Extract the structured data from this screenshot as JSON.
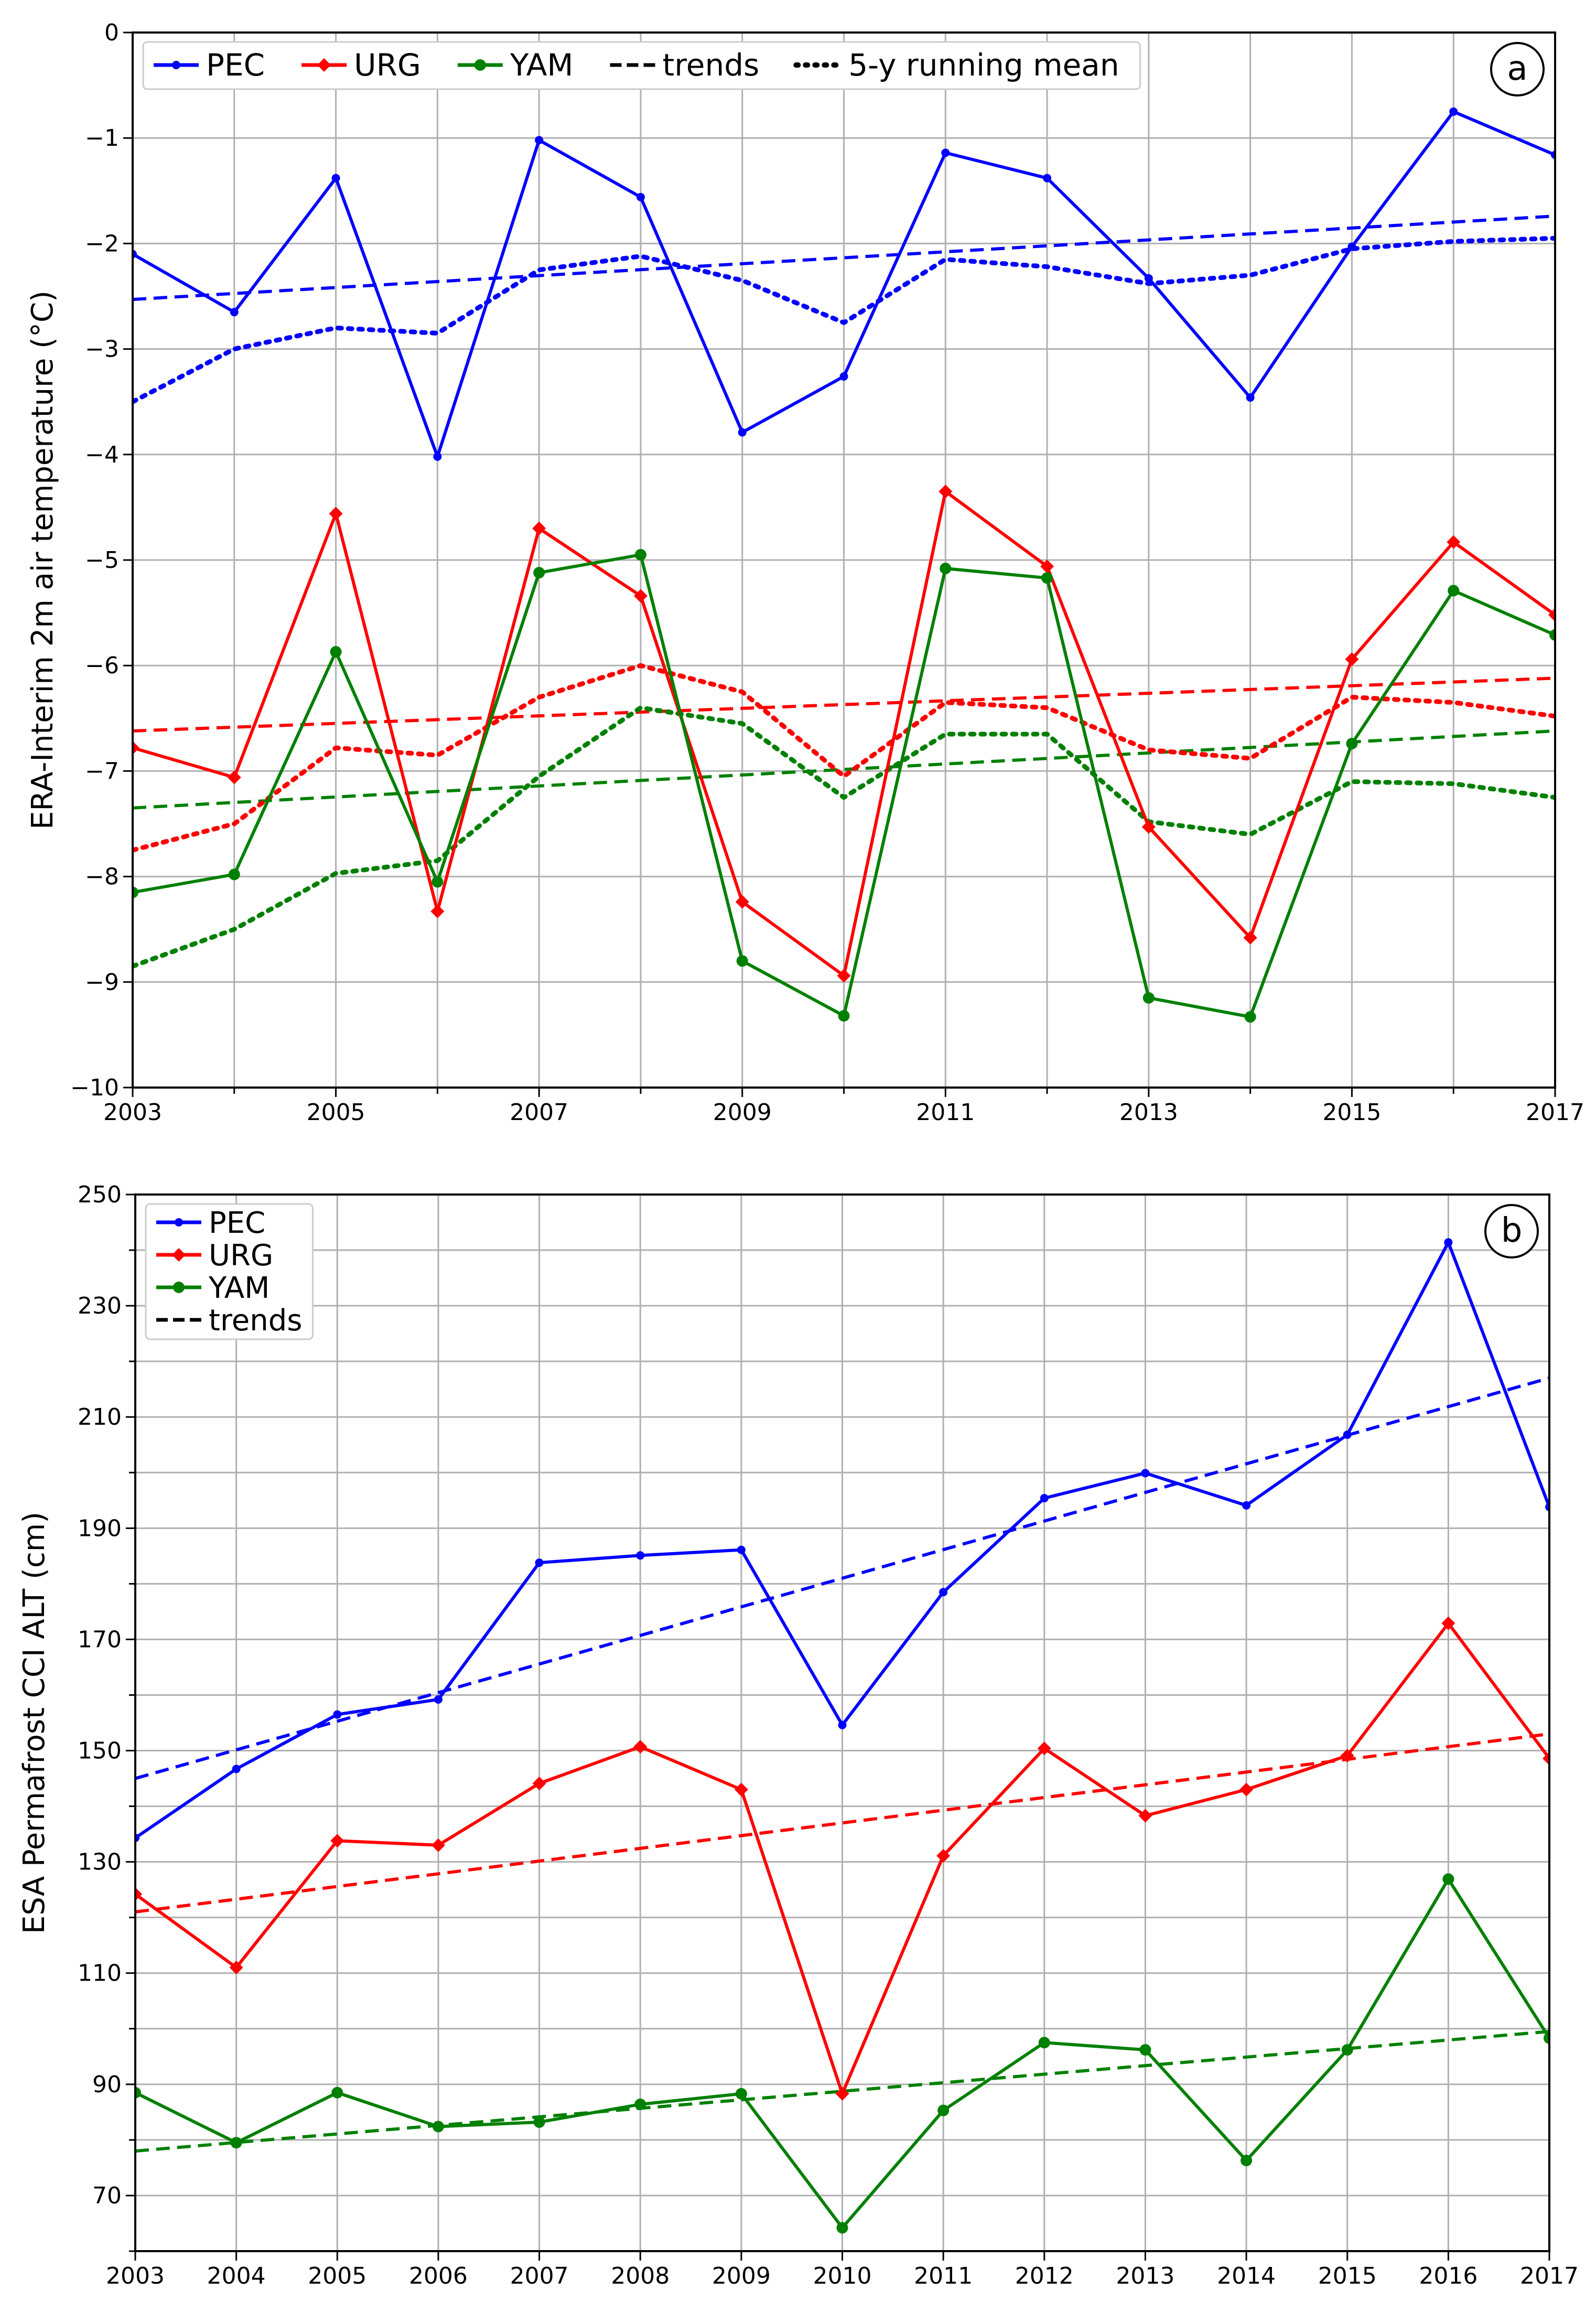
{
  "chart_data": [
    {
      "type": "line",
      "panel_label": "a",
      "ylabel": "ERA-Interim 2m air temperature (°C)",
      "xlim": [
        2003,
        2017
      ],
      "ylim": [
        -10,
        0
      ],
      "xticks": [
        2003,
        2005,
        2007,
        2009,
        2011,
        2013,
        2015,
        2017
      ],
      "x_minor_ticks": [
        2004,
        2006,
        2008,
        2010,
        2012,
        2014,
        2016
      ],
      "yticks": [
        {
          "value": -10,
          "label": "−10"
        },
        {
          "value": -9,
          "label": "−9"
        },
        {
          "value": -8,
          "label": "−8"
        },
        {
          "value": -7,
          "label": "−7"
        },
        {
          "value": -6,
          "label": "−6"
        },
        {
          "value": -5,
          "label": "−5"
        },
        {
          "value": -4,
          "label": "−4"
        },
        {
          "value": -3,
          "label": "−3"
        },
        {
          "value": -2,
          "label": "−2"
        },
        {
          "value": -1,
          "label": "−1"
        },
        0
      ],
      "grid": true,
      "legend_layout": "row",
      "legend_styles": [
        {
          "label": "trends",
          "style": "dashed"
        },
        {
          "label": "5-y running mean",
          "style": "dotted"
        }
      ],
      "series": [
        {
          "name": "PEC",
          "color": "#0000ff",
          "marker": "dot",
          "style": "solid",
          "x": [
            2003,
            2004,
            2005,
            2006,
            2007,
            2008,
            2009,
            2010,
            2011,
            2012,
            2013,
            2014,
            2015,
            2016,
            2017
          ],
          "values": [
            -2.1,
            -2.65,
            -1.38,
            -4.02,
            -1.02,
            -1.56,
            -3.79,
            -3.26,
            -1.14,
            -1.38,
            -2.33,
            -3.46,
            -2.03,
            -0.75,
            -1.16
          ]
        },
        {
          "name": "URG",
          "color": "#ff0000",
          "marker": "diamond",
          "style": "solid",
          "x": [
            2003,
            2004,
            2005,
            2006,
            2007,
            2008,
            2009,
            2010,
            2011,
            2012,
            2013,
            2014,
            2015,
            2016,
            2017
          ],
          "values": [
            -6.78,
            -7.06,
            -4.56,
            -8.33,
            -4.7,
            -5.34,
            -8.24,
            -8.94,
            -4.35,
            -5.06,
            -7.53,
            -8.58,
            -5.94,
            -4.83,
            -5.52
          ]
        },
        {
          "name": "YAM",
          "color": "#008000",
          "marker": "circle",
          "style": "solid",
          "x": [
            2003,
            2004,
            2005,
            2006,
            2007,
            2008,
            2009,
            2010,
            2011,
            2012,
            2013,
            2014,
            2015,
            2016,
            2017
          ],
          "values": [
            -8.15,
            -7.98,
            -5.87,
            -8.05,
            -5.12,
            -4.95,
            -8.8,
            -9.32,
            -5.08,
            -5.17,
            -9.15,
            -9.33,
            -6.74,
            -5.29,
            -5.71
          ]
        },
        {
          "color": "#0000ff",
          "style": "dashed",
          "x": [
            2003,
            2017
          ],
          "values": [
            -2.53,
            -1.74
          ]
        },
        {
          "color": "#ff0000",
          "style": "dashed",
          "x": [
            2003,
            2017
          ],
          "values": [
            -6.62,
            -6.12
          ]
        },
        {
          "color": "#008000",
          "style": "dashed",
          "x": [
            2003,
            2017
          ],
          "values": [
            -7.35,
            -6.62
          ]
        },
        {
          "color": "#0000ff",
          "style": "dotted",
          "x": [
            2003,
            2004,
            2005,
            2006,
            2007,
            2008,
            2009,
            2010,
            2011,
            2012,
            2013,
            2014,
            2015,
            2016,
            2017
          ],
          "values": [
            -3.5,
            -3.0,
            -2.8,
            -2.85,
            -2.25,
            -2.12,
            -2.35,
            -2.75,
            -2.15,
            -2.22,
            -2.38,
            -2.3,
            -2.05,
            -1.98,
            -1.95
          ]
        },
        {
          "color": "#ff0000",
          "style": "dotted",
          "x": [
            2003,
            2004,
            2005,
            2006,
            2007,
            2008,
            2009,
            2010,
            2011,
            2012,
            2013,
            2014,
            2015,
            2016,
            2017
          ],
          "values": [
            -7.75,
            -7.5,
            -6.78,
            -6.85,
            -6.3,
            -6.0,
            -6.25,
            -7.05,
            -6.35,
            -6.4,
            -6.8,
            -6.88,
            -6.3,
            -6.35,
            -6.48
          ]
        },
        {
          "color": "#008000",
          "style": "dotted",
          "x": [
            2003,
            2004,
            2005,
            2006,
            2007,
            2008,
            2009,
            2010,
            2011,
            2012,
            2013,
            2014,
            2015,
            2016,
            2017
          ],
          "values": [
            -8.85,
            -8.5,
            -7.97,
            -7.85,
            -7.05,
            -6.4,
            -6.55,
            -7.25,
            -6.65,
            -6.65,
            -7.48,
            -7.6,
            -7.1,
            -7.12,
            -7.25
          ]
        }
      ]
    },
    {
      "type": "line",
      "panel_label": "b",
      "ylabel": "ESA Permafrost CCI ALT (cm)",
      "xlim": [
        2003,
        2017
      ],
      "ylim": [
        60,
        250
      ],
      "xticks": [
        2003,
        2004,
        2005,
        2006,
        2007,
        2008,
        2009,
        2010,
        2011,
        2012,
        2013,
        2014,
        2015,
        2016,
        2017
      ],
      "yticks": [
        70,
        90,
        110,
        130,
        150,
        170,
        190,
        210,
        230,
        250
      ],
      "y_minor_ticks": [
        60,
        80,
        100,
        120,
        140,
        160,
        180,
        200,
        220,
        240
      ],
      "grid": true,
      "legend_layout": "column",
      "legend_styles": [
        {
          "label": "trends",
          "style": "dashed"
        }
      ],
      "series": [
        {
          "name": "PEC",
          "color": "#0000ff",
          "marker": "dot",
          "style": "solid",
          "x": [
            2003,
            2004,
            2005,
            2006,
            2007,
            2008,
            2009,
            2010,
            2011,
            2012,
            2013,
            2014,
            2015,
            2016,
            2017
          ],
          "values": [
            134.3,
            146.7,
            156.5,
            159.2,
            183.8,
            185.1,
            186.1,
            154.6,
            178.5,
            195.4,
            199.9,
            194.1,
            206.8,
            241.4,
            193.8
          ]
        },
        {
          "name": "URG",
          "color": "#ff0000",
          "marker": "diamond",
          "style": "solid",
          "x": [
            2003,
            2004,
            2005,
            2006,
            2007,
            2008,
            2009,
            2010,
            2011,
            2012,
            2013,
            2014,
            2015,
            2016,
            2017
          ],
          "values": [
            124.2,
            111,
            133.8,
            133,
            144.1,
            150.7,
            143,
            88.3,
            131.1,
            150.4,
            138.3,
            143,
            149.1,
            172.9,
            148.6
          ]
        },
        {
          "name": "YAM",
          "color": "#008000",
          "marker": "circle",
          "style": "solid",
          "x": [
            2003,
            2004,
            2005,
            2006,
            2007,
            2008,
            2009,
            2010,
            2011,
            2012,
            2013,
            2014,
            2015,
            2016,
            2017
          ],
          "values": [
            88.5,
            79.5,
            88.5,
            82.4,
            83.2,
            86.4,
            88.3,
            64.2,
            85.3,
            97.5,
            96.2,
            76.3,
            96.2,
            126.9,
            98.3
          ]
        },
        {
          "color": "#0000ff",
          "style": "dashed",
          "x": [
            2003,
            2017
          ],
          "values": [
            145,
            217
          ]
        },
        {
          "color": "#ff0000",
          "style": "dashed",
          "x": [
            2003,
            2017
          ],
          "values": [
            121,
            153
          ]
        },
        {
          "color": "#008000",
          "style": "dashed",
          "x": [
            2003,
            2017
          ],
          "values": [
            78,
            99.5
          ]
        }
      ]
    }
  ]
}
